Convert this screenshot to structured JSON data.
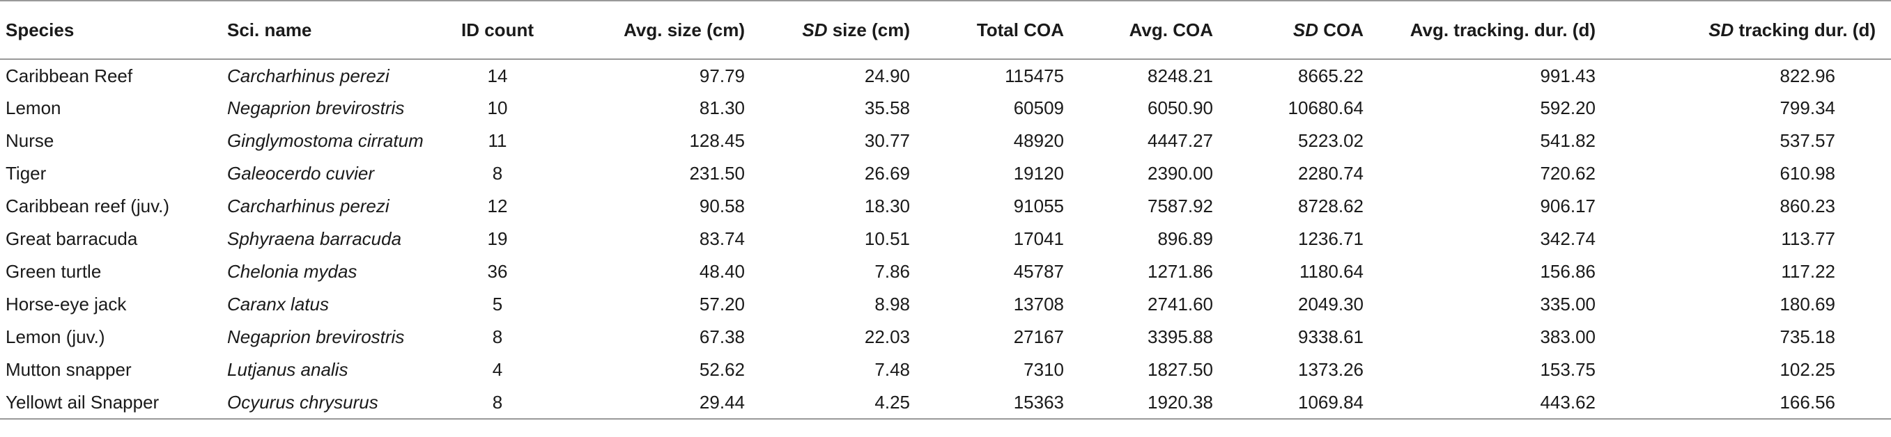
{
  "headers": {
    "species": "Species",
    "sci_name": "Sci. name",
    "id_count": "ID count",
    "avg_size": "Avg. size (cm)",
    "sd_size_prefix": "SD",
    "sd_size_rest": " size (cm)",
    "total_coa": "Total COA",
    "avg_coa": "Avg. COA",
    "sd_coa_prefix": "SD",
    "sd_coa_rest": " COA",
    "avg_track": "Avg. tracking. dur. (d)",
    "sd_track_prefix": "SD",
    "sd_track_rest": " tracking dur. (d)"
  },
  "rows": [
    {
      "species": "Caribbean Reef",
      "sci_name": "Carcharhinus perezi",
      "id_count": "14",
      "avg_size": "97.79",
      "sd_size": "24.90",
      "total_coa": "115475",
      "avg_coa": "8248.21",
      "sd_coa": "8665.22",
      "avg_track": "991.43",
      "sd_track": "822.96"
    },
    {
      "species": "Lemon",
      "sci_name": "Negaprion brevirostris",
      "id_count": "10",
      "avg_size": "81.30",
      "sd_size": "35.58",
      "total_coa": "60509",
      "avg_coa": "6050.90",
      "sd_coa": "10680.64",
      "avg_track": "592.20",
      "sd_track": "799.34"
    },
    {
      "species": "Nurse",
      "sci_name": "Ginglymostoma cirratum",
      "id_count": "11",
      "avg_size": "128.45",
      "sd_size": "30.77",
      "total_coa": "48920",
      "avg_coa": "4447.27",
      "sd_coa": "5223.02",
      "avg_track": "541.82",
      "sd_track": "537.57"
    },
    {
      "species": "Tiger",
      "sci_name": "Galeocerdo cuvier",
      "id_count": "8",
      "avg_size": "231.50",
      "sd_size": "26.69",
      "total_coa": "19120",
      "avg_coa": "2390.00",
      "sd_coa": "2280.74",
      "avg_track": "720.62",
      "sd_track": "610.98"
    },
    {
      "species": "Caribbean reef (juv.)",
      "sci_name": "Carcharhinus perezi",
      "id_count": "12",
      "avg_size": "90.58",
      "sd_size": "18.30",
      "total_coa": "91055",
      "avg_coa": "7587.92",
      "sd_coa": "8728.62",
      "avg_track": "906.17",
      "sd_track": "860.23"
    },
    {
      "species": "Great barracuda",
      "sci_name": "Sphyraena barracuda",
      "id_count": "19",
      "avg_size": "83.74",
      "sd_size": "10.51",
      "total_coa": "17041",
      "avg_coa": "896.89",
      "sd_coa": "1236.71",
      "avg_track": "342.74",
      "sd_track": "113.77"
    },
    {
      "species": "Green turtle",
      "sci_name": "Chelonia mydas",
      "id_count": "36",
      "avg_size": "48.40",
      "sd_size": "7.86",
      "total_coa": "45787",
      "avg_coa": "1271.86",
      "sd_coa": "1180.64",
      "avg_track": "156.86",
      "sd_track": "117.22"
    },
    {
      "species": "Horse-eye jack",
      "sci_name": "Caranx latus",
      "id_count": "5",
      "avg_size": "57.20",
      "sd_size": "8.98",
      "total_coa": "13708",
      "avg_coa": "2741.60",
      "sd_coa": "2049.30",
      "avg_track": "335.00",
      "sd_track": "180.69"
    },
    {
      "species": "Lemon (juv.)",
      "sci_name": "Negaprion brevirostris",
      "id_count": "8",
      "avg_size": "67.38",
      "sd_size": "22.03",
      "total_coa": "27167",
      "avg_coa": "3395.88",
      "sd_coa": "9338.61",
      "avg_track": "383.00",
      "sd_track": "735.18"
    },
    {
      "species": "Mutton snapper",
      "sci_name": "Lutjanus analis",
      "id_count": "4",
      "avg_size": "52.62",
      "sd_size": "7.48",
      "total_coa": "7310",
      "avg_coa": "1827.50",
      "sd_coa": "1373.26",
      "avg_track": "153.75",
      "sd_track": "102.25"
    },
    {
      "species": "Yellowt ail Snapper",
      "sci_name": "Ocyurus chrysurus",
      "id_count": "8",
      "avg_size": "29.44",
      "sd_size": "4.25",
      "total_coa": "15363",
      "avg_coa": "1920.38",
      "sd_coa": "1069.84",
      "avg_track": "443.62",
      "sd_track": "166.56"
    }
  ]
}
